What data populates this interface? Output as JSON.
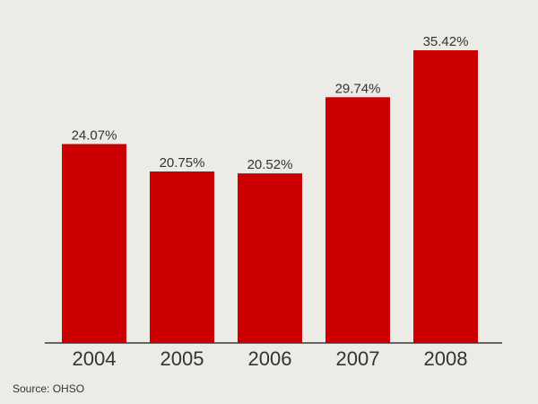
{
  "chart_data": {
    "type": "bar",
    "categories": [
      "2004",
      "2005",
      "2006",
      "2007",
      "2008"
    ],
    "values": [
      24.07,
      20.75,
      20.52,
      29.74,
      35.42
    ],
    "value_labels": [
      "24.07%",
      "20.75%",
      "20.52%",
      "29.74%",
      "35.42%"
    ],
    "title": "",
    "xlabel": "",
    "ylabel": "",
    "ylim": [
      0,
      40
    ],
    "grid": false,
    "bar_color": "#cc0000"
  },
  "footer": {
    "source": "Source: OHSO"
  }
}
